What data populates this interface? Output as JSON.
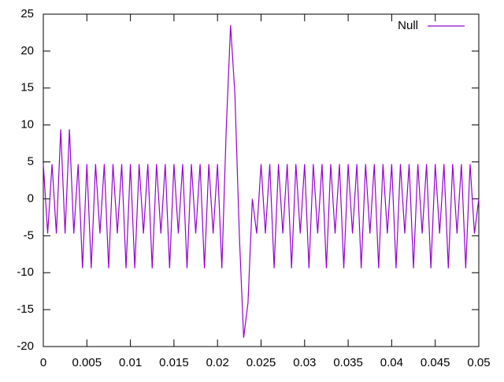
{
  "chart_data": {
    "type": "line",
    "x": [
      0,
      0.0005,
      0.001,
      0.0015,
      0.002,
      0.0025,
      0.003,
      0.0035,
      0.004,
      0.0045,
      0.005,
      0.0055,
      0.006,
      0.0065,
      0.007,
      0.0075,
      0.008,
      0.0085,
      0.009,
      0.0095,
      0.01,
      0.0105,
      0.011,
      0.0115,
      0.012,
      0.0125,
      0.013,
      0.0135,
      0.014,
      0.0145,
      0.015,
      0.0155,
      0.016,
      0.0165,
      0.017,
      0.0175,
      0.018,
      0.0185,
      0.019,
      0.0195,
      0.02,
      0.0205,
      0.021,
      0.0215,
      0.022,
      0.0225,
      0.023,
      0.0235,
      0.024,
      0.0245,
      0.025,
      0.0255,
      0.026,
      0.0265,
      0.027,
      0.0275,
      0.028,
      0.0285,
      0.029,
      0.0295,
      0.03,
      0.0305,
      0.031,
      0.0315,
      0.032,
      0.0325,
      0.033,
      0.0335,
      0.034,
      0.0345,
      0.035,
      0.0355,
      0.036,
      0.0365,
      0.037,
      0.0375,
      0.038,
      0.0385,
      0.039,
      0.0395,
      0.04,
      0.0405,
      0.041,
      0.0415,
      0.042,
      0.0425,
      0.043,
      0.0435,
      0.044,
      0.0445,
      0.045,
      0.0455,
      0.046,
      0.0465,
      0.047,
      0.0475,
      0.048,
      0.0485,
      0.049,
      0.0495,
      0.05
    ],
    "series": [
      {
        "name": "Null",
        "color": "#9400d3",
        "values": [
          4.7,
          -4.7,
          4.7,
          -4.7,
          9.4,
          -4.7,
          9.4,
          -4.7,
          4.7,
          -9.4,
          4.7,
          -9.4,
          4.7,
          -4.7,
          4.7,
          -9.4,
          4.7,
          -4.7,
          4.7,
          -9.4,
          4.7,
          -9.4,
          4.7,
          -4.7,
          4.7,
          -9.4,
          4.7,
          -4.7,
          4.7,
          -9.4,
          4.7,
          -4.7,
          4.7,
          -9.4,
          4.7,
          -4.7,
          4.7,
          -9.4,
          4.7,
          -4.7,
          4.7,
          -9.4,
          9.4,
          23.5,
          14.1,
          -4.7,
          -18.8,
          -14.1,
          0,
          -4.7,
          4.7,
          -4.7,
          4.7,
          -9.4,
          4.7,
          -4.7,
          4.7,
          -9.4,
          4.7,
          -4.7,
          4.7,
          -9.4,
          4.7,
          -4.7,
          4.7,
          -9.4,
          4.7,
          -4.7,
          4.7,
          -9.4,
          4.7,
          -4.7,
          4.7,
          -9.4,
          4.7,
          -4.7,
          4.7,
          -9.4,
          4.7,
          -4.7,
          4.7,
          -9.4,
          4.7,
          -4.7,
          4.7,
          -9.4,
          4.7,
          -4.7,
          4.7,
          -9.4,
          4.7,
          -4.7,
          4.7,
          -9.4,
          4.7,
          -4.7,
          4.7,
          -9.4,
          4.7,
          -4.7,
          0
        ]
      }
    ],
    "xlim": [
      0,
      0.05
    ],
    "xticks": [
      0,
      0.005,
      0.01,
      0.015,
      0.02,
      0.025,
      0.03,
      0.035,
      0.04,
      0.045,
      0.05
    ],
    "ylim": [
      -20,
      25
    ],
    "yticks": [
      -20,
      -15,
      -10,
      -5,
      0,
      5,
      10,
      15,
      20,
      25
    ],
    "legend": "top right"
  }
}
